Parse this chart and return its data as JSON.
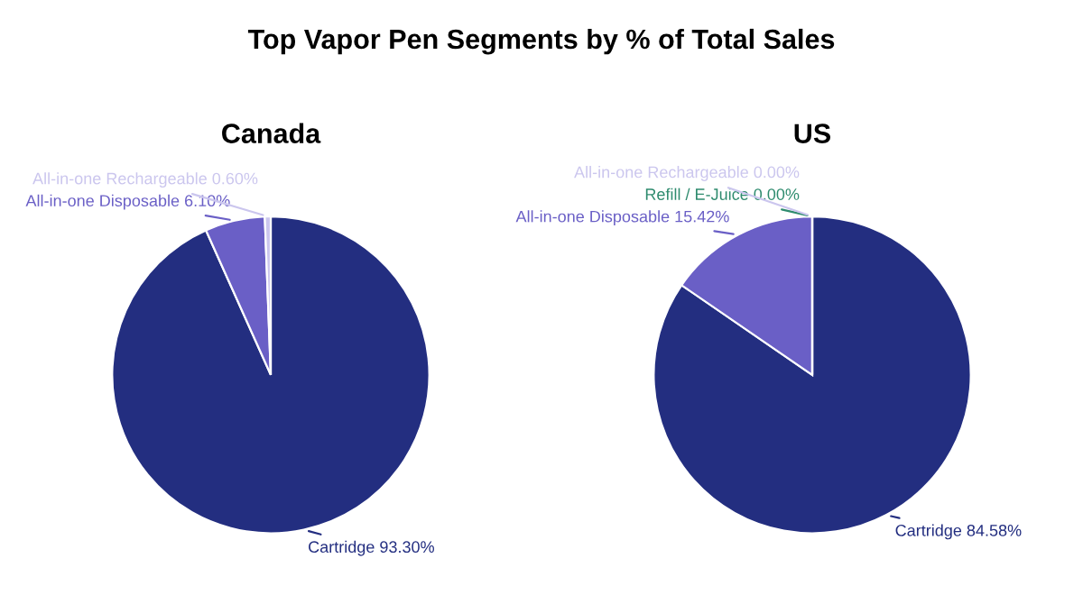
{
  "chart_data": [
    {
      "type": "pie",
      "title": "Canada",
      "annotations": [
        "Top Vapor Pen Segments by % of Total Sales"
      ],
      "categories": [
        "Cartridge",
        "All-in-one Disposable",
        "All-in-one Rechargeable"
      ],
      "values": [
        93.3,
        6.1,
        0.6
      ],
      "value_labels": [
        "93.30%",
        "6.10%",
        "0.60%"
      ],
      "colors": [
        "#232e80",
        "#6a5fc6",
        "#cbc6ee"
      ]
    },
    {
      "type": "pie",
      "title": "US",
      "categories": [
        "Cartridge",
        "All-in-one Disposable",
        "Refill / E-Juice",
        "All-in-one Rechargeable"
      ],
      "values": [
        84.58,
        15.42,
        0,
        0
      ],
      "value_labels": [
        "84.58%",
        "15.42%",
        "0.00%",
        "0.00%"
      ],
      "colors": [
        "#232e80",
        "#6a5fc6",
        "#2e8b6e",
        "#cbc6ee"
      ]
    }
  ]
}
